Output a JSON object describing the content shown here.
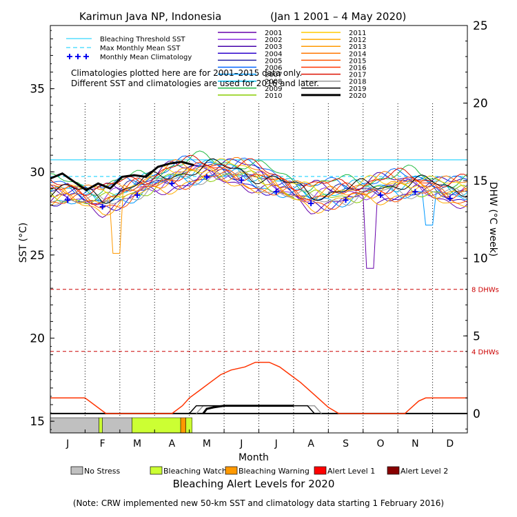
{
  "chart_data": {
    "type": "line",
    "title_left": "Karimun Java NP, Indonesia",
    "title_right": "(Jan 1 2001 – 4 May 2020)",
    "ylabel_left": "SST (°C)",
    "ylabel_right": "DHW (°C week)",
    "xlabel": "Month",
    "y_left_range": [
      14.3,
      38.8
    ],
    "y_left_ticks": [
      15,
      20,
      25,
      30,
      35
    ],
    "y_right_range": [
      -1.25,
      25
    ],
    "y_right_ticks": [
      0,
      5,
      10,
      15,
      20,
      25
    ],
    "months": [
      "J",
      "F",
      "M",
      "A",
      "M",
      "J",
      "J",
      "A",
      "S",
      "O",
      "N",
      "D"
    ],
    "bleaching_threshold_sst": 30.72,
    "max_monthly_mean_sst": 29.72,
    "thresholds": [
      {
        "label": "8 DHWs",
        "dhw": 8
      },
      {
        "label": "4 DHWs",
        "dhw": 4
      }
    ],
    "monthly_mean_climatology": [
      28.3,
      27.9,
      28.6,
      29.3,
      29.7,
      29.5,
      28.8,
      28.1,
      28.3,
      28.6,
      28.8,
      28.4
    ],
    "legend_static": [
      {
        "label": "Bleaching Threshold SST",
        "style": "solid",
        "color": "#00ccff"
      },
      {
        "label": "Max Monthly Mean SST",
        "style": "dashed",
        "color": "#00ccff"
      },
      {
        "label": "Monthly Mean Climatology",
        "style": "cross",
        "color": "#0000ee"
      }
    ],
    "note_line1": "Climatologies plotted here are for 2001–2015 data only.",
    "note_line2": "Different SST and climatologies are used for 2016 and later.",
    "series": [
      {
        "name": "2001",
        "color": "#6600aa"
      },
      {
        "name": "2002",
        "color": "#8a2be2"
      },
      {
        "name": "2003",
        "color": "#4400aa"
      },
      {
        "name": "2004",
        "color": "#2a00cc"
      },
      {
        "name": "2005",
        "color": "#2020a0"
      },
      {
        "name": "2006",
        "color": "#0066ff"
      },
      {
        "name": "2007",
        "color": "#0099ff"
      },
      {
        "name": "2008",
        "color": "#00bbee"
      },
      {
        "name": "2009",
        "color": "#22bb44"
      },
      {
        "name": "2010",
        "color": "#88cc00"
      },
      {
        "name": "2011",
        "color": "#ffcc00"
      },
      {
        "name": "2012",
        "color": "#ffaa00"
      },
      {
        "name": "2013",
        "color": "#ff9900"
      },
      {
        "name": "2014",
        "color": "#ff7700"
      },
      {
        "name": "2015",
        "color": "#ff5500"
      },
      {
        "name": "2016",
        "color": "#ff3300"
      },
      {
        "name": "2017",
        "color": "#dd1100"
      },
      {
        "name": "2018",
        "color": "#999999"
      },
      {
        "name": "2019",
        "color": "#000000"
      },
      {
        "name": "2020",
        "color": "#000000",
        "bold": true
      }
    ],
    "sst_2020": [
      29.6,
      29.9,
      29.4,
      28.9,
      29.3,
      29.0,
      29.7,
      29.8,
      29.7,
      30.3,
      30.5,
      30.6,
      30.4
    ],
    "dhw_2019": [
      {
        "x": 4.0,
        "y": 0
      },
      {
        "x": 4.2,
        "y": 0.5
      },
      {
        "x": 7.4,
        "y": 0.5
      },
      {
        "x": 7.6,
        "y": 0
      }
    ],
    "dhw_2018": [
      {
        "x": 4.2,
        "y": 0
      },
      {
        "x": 4.4,
        "y": 0.5
      },
      {
        "x": 7.6,
        "y": 0.5
      },
      {
        "x": 7.8,
        "y": 0
      }
    ],
    "dhw_2020": [
      {
        "x": 4.4,
        "y": 0
      },
      {
        "x": 4.5,
        "y": 0.3
      },
      {
        "x": 4.7,
        "y": 0.4
      },
      {
        "x": 5.0,
        "y": 0.5
      },
      {
        "x": 7.0,
        "y": 0.5
      }
    ],
    "dhw_2016": [
      {
        "x": 0,
        "y": 1.0
      },
      {
        "x": 1.0,
        "y": 1.0
      },
      {
        "x": 1.6,
        "y": 0
      },
      {
        "x": 3.5,
        "y": 0
      },
      {
        "x": 3.8,
        "y": 0.5
      },
      {
        "x": 4.0,
        "y": 1.0
      },
      {
        "x": 4.3,
        "y": 1.5
      },
      {
        "x": 4.6,
        "y": 2.0
      },
      {
        "x": 4.9,
        "y": 2.5
      },
      {
        "x": 5.2,
        "y": 2.8
      },
      {
        "x": 5.6,
        "y": 3.0
      },
      {
        "x": 5.9,
        "y": 3.3
      },
      {
        "x": 6.3,
        "y": 3.3
      },
      {
        "x": 6.6,
        "y": 3.0
      },
      {
        "x": 6.9,
        "y": 2.5
      },
      {
        "x": 7.2,
        "y": 2.0
      },
      {
        "x": 7.6,
        "y": 1.2
      },
      {
        "x": 8.0,
        "y": 0.4
      },
      {
        "x": 8.3,
        "y": 0
      },
      {
        "x": 10.2,
        "y": 0
      },
      {
        "x": 10.6,
        "y": 0.8
      },
      {
        "x": 10.8,
        "y": 1.0
      },
      {
        "x": 12.0,
        "y": 1.0
      }
    ],
    "alert_legend": [
      {
        "label": "No Stress",
        "color": "#c0c0c0"
      },
      {
        "label": "Bleaching Watch",
        "color": "#ccff33"
      },
      {
        "label": "Bleaching Warning",
        "color": "#ff9900"
      },
      {
        "label": "Alert Level 1",
        "color": "#ff0000"
      },
      {
        "label": "Alert Level 2",
        "color": "#880000"
      }
    ],
    "alert_bar_2020": [
      {
        "level": "No Stress",
        "x0": 0.0,
        "x1": 1.4
      },
      {
        "level": "Bleaching Watch",
        "x0": 1.4,
        "x1": 1.5
      },
      {
        "level": "No Stress",
        "x0": 1.5,
        "x1": 2.35
      },
      {
        "level": "Bleaching Watch",
        "x0": 2.35,
        "x1": 3.75
      },
      {
        "level": "Bleaching Warning",
        "x0": 3.75,
        "x1": 3.9
      },
      {
        "level": "Bleaching Watch",
        "x0": 3.9,
        "x1": 4.08
      }
    ],
    "alert_title": "Bleaching Alert Levels for 2020",
    "footnote": "(Note: CRW implemented new 50-km SST and climatology data starting 1 February 2016)"
  }
}
